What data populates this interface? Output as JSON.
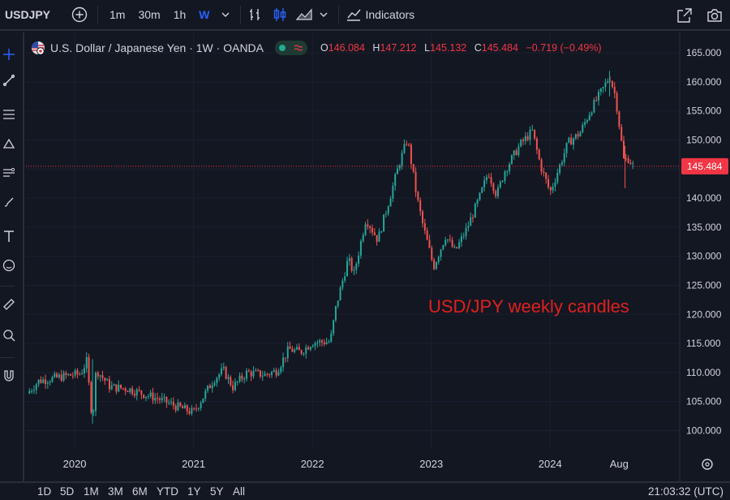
{
  "toolbar": {
    "symbol": "USDJPY",
    "intervals": [
      "1m",
      "30m",
      "1h",
      "W"
    ],
    "active_interval": "W",
    "indicators_label": "Indicators"
  },
  "legend": {
    "title": "U.S. Dollar / Japanese Yen · 1W · OANDA",
    "o_label": "O",
    "o_value": "146.084",
    "h_label": "H",
    "h_value": "147.212",
    "l_label": "L",
    "l_value": "145.132",
    "c_label": "C",
    "c_value": "145.484",
    "change": "−0.719 (−0.49%)"
  },
  "colors": {
    "background": "#131722",
    "up": "#26a69a",
    "down": "#ef5350",
    "price_line": "#f23645",
    "annotation": "#e0201e",
    "accent": "#2962ff"
  },
  "chart_data": {
    "type": "candlestick",
    "title": "U.S. Dollar / Japanese Yen · 1W · OANDA",
    "annotation": "USD/JPY weekly candles",
    "y_axis": {
      "ticks": [
        100,
        105,
        110,
        115,
        120,
        125,
        130,
        135,
        140,
        145,
        150,
        155,
        160,
        165
      ],
      "tick_labels": [
        "100.000",
        "105.000",
        "110.000",
        "115.000",
        "120.000",
        "125.000",
        "130.000",
        "135.000",
        "140.000",
        "145.000",
        "150.000",
        "155.000",
        "160.000",
        "165.000"
      ],
      "range": [
        97,
        168.5
      ]
    },
    "x_axis": {
      "labels": [
        "2020",
        "2021",
        "2022",
        "2023",
        "2024",
        "Aug"
      ],
      "label_times": [
        2020.0,
        2021.0,
        2022.0,
        2023.0,
        2024.0,
        2024.58
      ],
      "range": [
        2019.59,
        2025.09
      ]
    },
    "last_price": 145.484,
    "last_price_label": "145.484",
    "price_path": [
      [
        2019.6,
        106.4
      ],
      [
        2019.7,
        108.6
      ],
      [
        2019.8,
        108.9
      ],
      [
        2019.95,
        109.5
      ],
      [
        2020.05,
        109.8
      ],
      [
        2020.1,
        111.9
      ],
      [
        2020.15,
        101.5
      ],
      [
        2020.18,
        110.5
      ],
      [
        2020.3,
        107.5
      ],
      [
        2020.45,
        107.2
      ],
      [
        2020.55,
        106.5
      ],
      [
        2020.7,
        105.5
      ],
      [
        2020.85,
        104.2
      ],
      [
        2021.0,
        103.1
      ],
      [
        2021.17,
        108.8
      ],
      [
        2021.25,
        110.4
      ],
      [
        2021.33,
        107.5
      ],
      [
        2021.45,
        110.0
      ],
      [
        2021.6,
        109.6
      ],
      [
        2021.7,
        110.3
      ],
      [
        2021.8,
        114.0
      ],
      [
        2021.9,
        113.5
      ],
      [
        2022.0,
        115.2
      ],
      [
        2022.15,
        115.3
      ],
      [
        2022.2,
        121.5
      ],
      [
        2022.3,
        129.5
      ],
      [
        2022.35,
        127.0
      ],
      [
        2022.45,
        136.5
      ],
      [
        2022.55,
        132.8
      ],
      [
        2022.65,
        140.0
      ],
      [
        2022.73,
        145.9
      ],
      [
        2022.8,
        150.2
      ],
      [
        2022.88,
        140.0
      ],
      [
        2022.93,
        135.3
      ],
      [
        2023.02,
        128.2
      ],
      [
        2023.12,
        133.5
      ],
      [
        2023.2,
        130.8
      ],
      [
        2023.3,
        134.8
      ],
      [
        2023.4,
        139.8
      ],
      [
        2023.48,
        144.5
      ],
      [
        2023.55,
        140.5
      ],
      [
        2023.62,
        144.8
      ],
      [
        2023.75,
        149.3
      ],
      [
        2023.85,
        151.5
      ],
      [
        2023.92,
        145.5
      ],
      [
        2024.0,
        141.0
      ],
      [
        2024.15,
        149.5
      ],
      [
        2024.25,
        151.2
      ],
      [
        2024.35,
        155.5
      ],
      [
        2024.45,
        159.0
      ],
      [
        2024.5,
        161.0
      ],
      [
        2024.55,
        157.5
      ],
      [
        2024.62,
        146.5
      ],
      [
        2024.66,
        146.8
      ],
      [
        2024.7,
        145.5
      ]
    ]
  },
  "time_ranges": [
    "1D",
    "5D",
    "1M",
    "3M",
    "6M",
    "YTD",
    "1Y",
    "5Y",
    "All"
  ],
  "clock": "21:03:32 (UTC)"
}
